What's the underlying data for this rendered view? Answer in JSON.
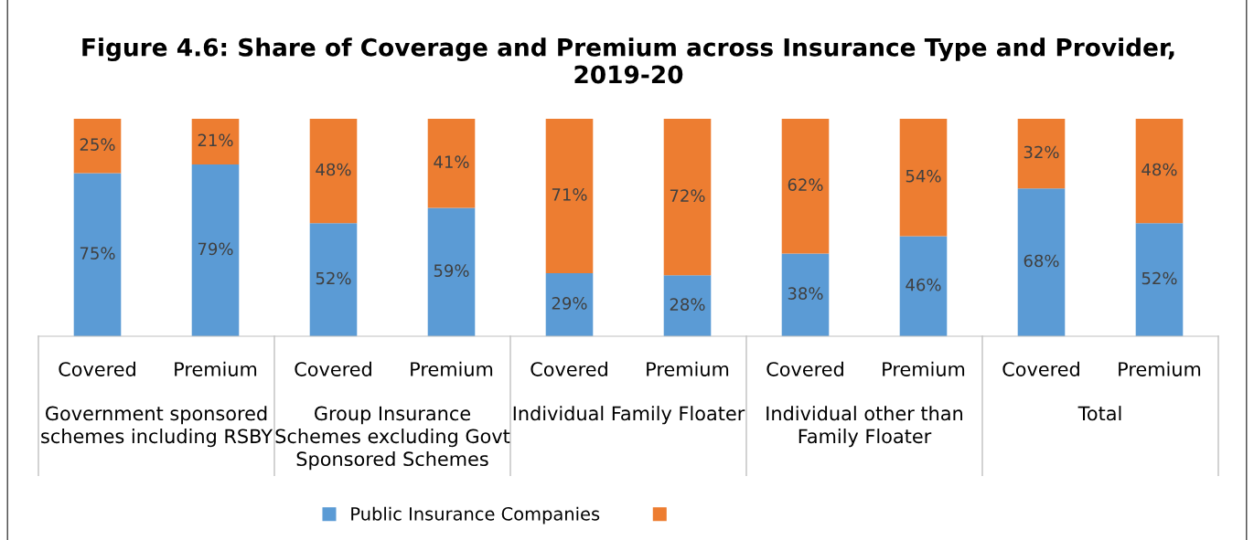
{
  "chart_data": {
    "type": "bar",
    "title": "Figure 4.6: Share of Coverage and Premium across Insurance Type and Provider,\n2019-20",
    "categories": [
      "Covered",
      "Premium",
      "Covered",
      "Premium",
      "Covered",
      "Premium",
      "Covered",
      "Premium",
      "Covered",
      "Premium"
    ],
    "series": [
      {
        "name": "Public Insurance Companies",
        "color": "#5b9bd5",
        "values": [
          75,
          79,
          52,
          59,
          29,
          28,
          38,
          46,
          68,
          52
        ],
        "value_labels": [
          "75%",
          "79%",
          "52%",
          "59%",
          "29%",
          "28%",
          "38%",
          "46%",
          "68%",
          "52%"
        ]
      },
      {
        "color": "#ed7d31",
        "values": [
          25,
          21,
          48,
          41,
          71,
          72,
          62,
          54,
          32,
          48
        ],
        "value_labels": [
          "25%",
          "21%",
          "48%",
          "41%",
          "71%",
          "72%",
          "62%",
          "54%",
          "32%",
          "48%"
        ]
      }
    ],
    "stacked": true,
    "tick_labels": "x",
    "legend": "bottom",
    "grid": false,
    "annotations": [
      "Government sponsored\nschemes including RSBY",
      "Group Insurance\nSchemes excluding Govt\nSponsored Schemes",
      "Individual Family Floater",
      "Individual other than\nFamily Floater",
      "Total"
    ]
  }
}
